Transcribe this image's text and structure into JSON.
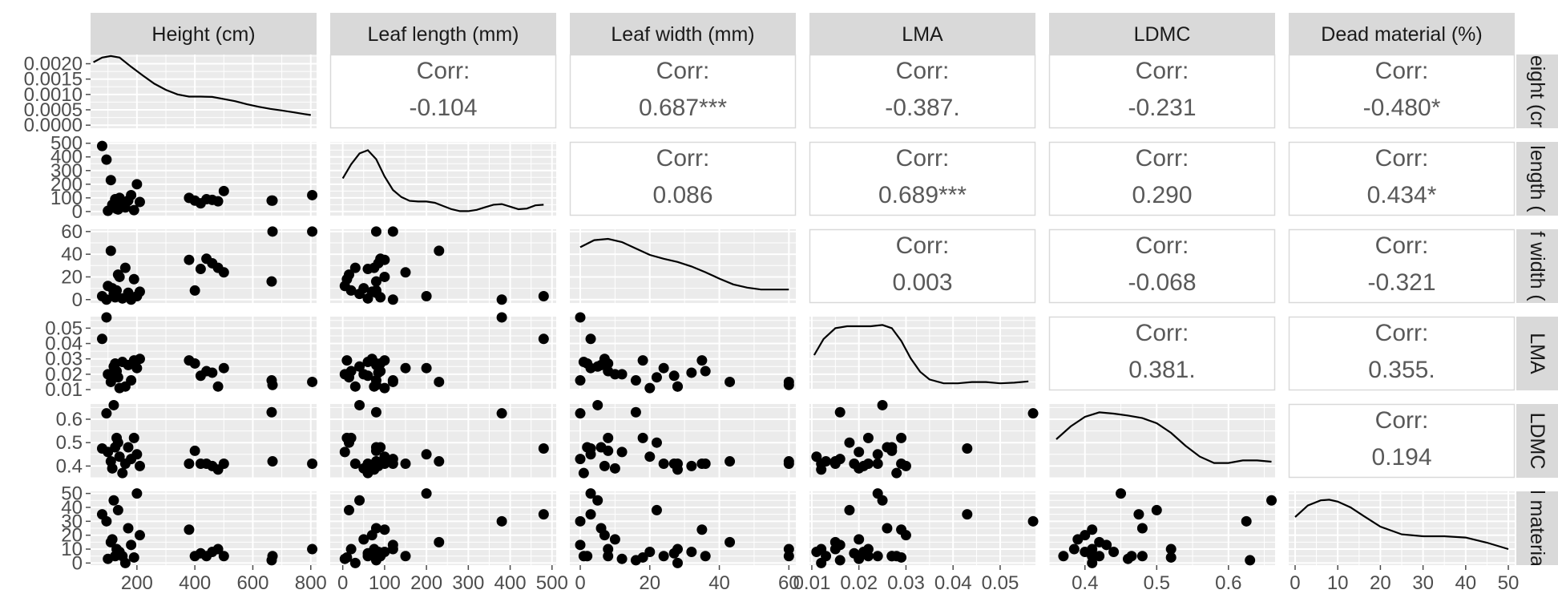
{
  "chart_data": {
    "type": "scatter-matrix",
    "variables": [
      "Height (cm)",
      "Leaf length (mm)",
      "Leaf width (mm)",
      "LMA",
      "LDMC",
      "Dead material (%)"
    ],
    "row_strip_labels": [
      "eight (cr",
      "length (",
      "f width (",
      "LMA",
      "LDMC",
      "l materia"
    ],
    "axis_ranges": [
      [
        40,
        820
      ],
      [
        -30,
        510
      ],
      [
        -3,
        62
      ],
      [
        0.0095,
        0.0575
      ],
      [
        0.35,
        0.665
      ],
      [
        -1.5,
        51.5
      ]
    ],
    "x_ticks": [
      [
        "200",
        "400",
        "600",
        "800"
      ],
      [
        "0",
        "100",
        "200",
        "300",
        "400",
        "500"
      ],
      [
        "0",
        "20",
        "40",
        "60"
      ],
      [
        "0.01",
        "0.02",
        "0.03",
        "0.04",
        "0.05"
      ],
      [
        "0.4",
        "0.5",
        "0.6"
      ],
      [
        "0",
        "10",
        "20",
        "30",
        "40",
        "50"
      ]
    ],
    "y_ticks": [
      [
        "0.0020",
        "0.0015",
        "0.0010",
        "0.0005",
        "0.0000"
      ],
      [
        "500",
        "400",
        "300",
        "200",
        "100",
        "0"
      ],
      [
        "60",
        "40",
        "20",
        "0"
      ],
      [
        "0.05",
        "0.04",
        "0.03",
        "0.02",
        "0.01"
      ],
      [
        "0.6",
        "0.5",
        "0.4"
      ],
      [
        "50",
        "40",
        "30",
        "20",
        "10",
        "0"
      ]
    ],
    "height_density_range": [
      -0.0001,
      0.0023
    ],
    "correlations": [
      {
        "row": 0,
        "col": 1,
        "label": "Corr:",
        "value": "-0.104"
      },
      {
        "row": 0,
        "col": 2,
        "label": "Corr:",
        "value": "0.687***"
      },
      {
        "row": 0,
        "col": 3,
        "label": "Corr:",
        "value": "-0.387."
      },
      {
        "row": 0,
        "col": 4,
        "label": "Corr:",
        "value": "-0.231"
      },
      {
        "row": 0,
        "col": 5,
        "label": "Corr:",
        "value": "-0.480*"
      },
      {
        "row": 1,
        "col": 2,
        "label": "Corr:",
        "value": "0.086"
      },
      {
        "row": 1,
        "col": 3,
        "label": "Corr:",
        "value": "0.689***"
      },
      {
        "row": 1,
        "col": 4,
        "label": "Corr:",
        "value": "0.290"
      },
      {
        "row": 1,
        "col": 5,
        "label": "Corr:",
        "value": "0.434*"
      },
      {
        "row": 2,
        "col": 3,
        "label": "Corr:",
        "value": "0.003"
      },
      {
        "row": 2,
        "col": 4,
        "label": "Corr:",
        "value": "-0.068"
      },
      {
        "row": 2,
        "col": 5,
        "label": "Corr:",
        "value": "-0.321"
      },
      {
        "row": 3,
        "col": 4,
        "label": "Corr:",
        "value": "0.381."
      },
      {
        "row": 3,
        "col": 5,
        "label": "Corr:",
        "value": "0.355."
      },
      {
        "row": 4,
        "col": 5,
        "label": "Corr:",
        "value": "0.194"
      }
    ],
    "density_curves": [
      {
        "variable": "Height (cm)",
        "x": [
          50,
          80,
          110,
          140,
          180,
          220,
          260,
          300,
          340,
          380,
          420,
          460,
          500,
          540,
          580,
          620,
          660,
          700,
          740,
          780,
          800
        ],
        "y": [
          0.00205,
          0.0022,
          0.00225,
          0.0022,
          0.0019,
          0.00162,
          0.00135,
          0.00115,
          0.001,
          0.00093,
          0.00093,
          0.00092,
          0.00085,
          0.00078,
          0.00068,
          0.0006,
          0.00053,
          0.00048,
          0.00042,
          0.00036,
          0.00033
        ]
      },
      {
        "variable": "Leaf length (mm)",
        "x": [
          0,
          20,
          40,
          60,
          80,
          100,
          120,
          140,
          160,
          180,
          200,
          220,
          240,
          260,
          280,
          300,
          320,
          340,
          360,
          380,
          400,
          420,
          440,
          460,
          480
        ],
        "y": [
          0.53,
          0.75,
          0.92,
          0.97,
          0.83,
          0.56,
          0.35,
          0.24,
          0.18,
          0.17,
          0.17,
          0.15,
          0.1,
          0.05,
          0.02,
          0.02,
          0.04,
          0.08,
          0.12,
          0.13,
          0.09,
          0.05,
          0.06,
          0.11,
          0.12
        ]
      },
      {
        "variable": "Leaf width (mm)",
        "x": [
          0,
          4,
          8,
          12,
          16,
          20,
          24,
          28,
          32,
          36,
          40,
          44,
          48,
          52,
          56,
          60
        ],
        "y": [
          0.82,
          0.93,
          0.95,
          0.9,
          0.8,
          0.7,
          0.64,
          0.59,
          0.52,
          0.43,
          0.33,
          0.24,
          0.19,
          0.16,
          0.16,
          0.16
        ]
      },
      {
        "variable": "LMA",
        "x": [
          0.0105,
          0.0125,
          0.015,
          0.0175,
          0.02,
          0.0225,
          0.025,
          0.027,
          0.029,
          0.031,
          0.033,
          0.035,
          0.038,
          0.041,
          0.044,
          0.047,
          0.05,
          0.053,
          0.056
        ],
        "y": [
          0.5,
          0.75,
          0.92,
          0.95,
          0.95,
          0.95,
          0.97,
          0.92,
          0.72,
          0.45,
          0.24,
          0.12,
          0.06,
          0.06,
          0.08,
          0.08,
          0.06,
          0.07,
          0.09
        ]
      },
      {
        "variable": "LDMC",
        "x": [
          0.36,
          0.38,
          0.4,
          0.42,
          0.44,
          0.46,
          0.48,
          0.5,
          0.52,
          0.54,
          0.56,
          0.58,
          0.6,
          0.62,
          0.64,
          0.66
        ],
        "y": [
          0.55,
          0.75,
          0.9,
          0.97,
          0.95,
          0.92,
          0.88,
          0.8,
          0.65,
          0.45,
          0.28,
          0.18,
          0.18,
          0.22,
          0.22,
          0.2
        ]
      },
      {
        "variable": "Dead material (%)",
        "x": [
          0,
          3,
          6,
          8,
          10,
          13,
          16,
          20,
          25,
          30,
          35,
          40,
          45,
          50
        ],
        "y": [
          0.7,
          0.88,
          0.96,
          0.97,
          0.94,
          0.85,
          0.72,
          0.55,
          0.43,
          0.4,
          0.4,
          0.38,
          0.3,
          0.2
        ]
      }
    ],
    "observations": [
      [
        80,
        480,
        3,
        0.043,
        0.475,
        35
      ],
      [
        95,
        380,
        0,
        0.057,
        0.625,
        30
      ],
      [
        110,
        230,
        43,
        0.015,
        0.42,
        15
      ],
      [
        120,
        40,
        5,
        0.025,
        0.66,
        45
      ],
      [
        135,
        15,
        22,
        0.018,
        0.5,
        38
      ],
      [
        100,
        5,
        12,
        0.02,
        0.46,
        3
      ],
      [
        130,
        20,
        8,
        0.022,
        0.52,
        10
      ],
      [
        150,
        60,
        1,
        0.028,
        0.37,
        5
      ],
      [
        160,
        30,
        28,
        0.012,
        0.41,
        0
      ],
      [
        170,
        80,
        6,
        0.026,
        0.48,
        25
      ],
      [
        180,
        120,
        0,
        0.016,
        0.43,
        13
      ],
      [
        190,
        10,
        18,
        0.029,
        0.52,
        4
      ],
      [
        200,
        200,
        3,
        0.024,
        0.45,
        50
      ],
      [
        210,
        70,
        7,
        0.03,
        0.4,
        20
      ],
      [
        140,
        100,
        20,
        0.011,
        0.44,
        8
      ],
      [
        115,
        50,
        10,
        0.02,
        0.39,
        17
      ],
      [
        125,
        90,
        2,
        0.027,
        0.48,
        5
      ],
      [
        380,
        100,
        35,
        0.029,
        0.41,
        24
      ],
      [
        400,
        80,
        8,
        0.027,
        0.465,
        5
      ],
      [
        420,
        60,
        27,
        0.019,
        0.41,
        7
      ],
      [
        440,
        90,
        36,
        0.022,
        0.41,
        5
      ],
      [
        460,
        85,
        32,
        0.021,
        0.4,
        8
      ],
      [
        480,
        75,
        28,
        0.012,
        0.385,
        10
      ],
      [
        500,
        150,
        24,
        0.024,
        0.41,
        5
      ],
      [
        665,
        80,
        16,
        0.016,
        0.63,
        2
      ],
      [
        668,
        80,
        60,
        0.013,
        0.42,
        5
      ],
      [
        805,
        120,
        60,
        0.015,
        0.41,
        10
      ]
    ]
  }
}
